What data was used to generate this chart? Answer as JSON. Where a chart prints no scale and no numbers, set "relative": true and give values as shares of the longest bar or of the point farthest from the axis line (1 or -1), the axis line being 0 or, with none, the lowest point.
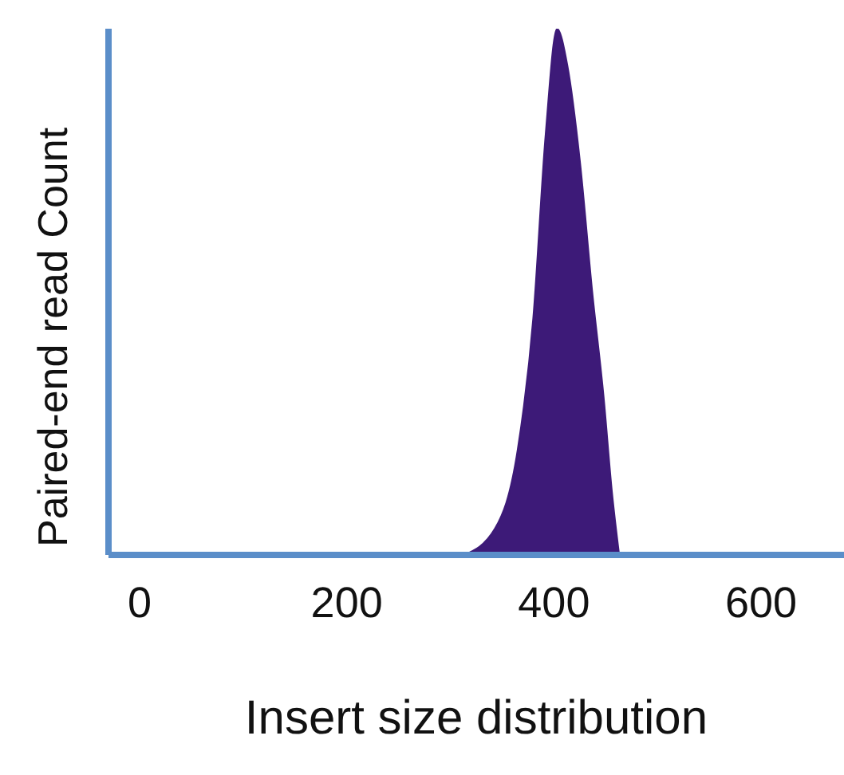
{
  "chart_data": {
    "type": "area",
    "relative": true,
    "xlabel": "Insert size distribution",
    "ylabel": "Paired-end read Count",
    "x": [
      313,
      343,
      365,
      380,
      392,
      403,
      413,
      425,
      437,
      448,
      456,
      463
    ],
    "series": [
      {
        "color": "#3d1a78",
        "values": [
          0,
          0.05,
          0.2,
          0.45,
          0.8,
          1,
          0.93,
          0.75,
          0.5,
          0.3,
          0.12,
          0
        ]
      }
    ],
    "xlim": [
      -30,
      680
    ],
    "xticks": [
      0,
      200,
      400,
      600
    ],
    "grid": false,
    "legend": false
  }
}
